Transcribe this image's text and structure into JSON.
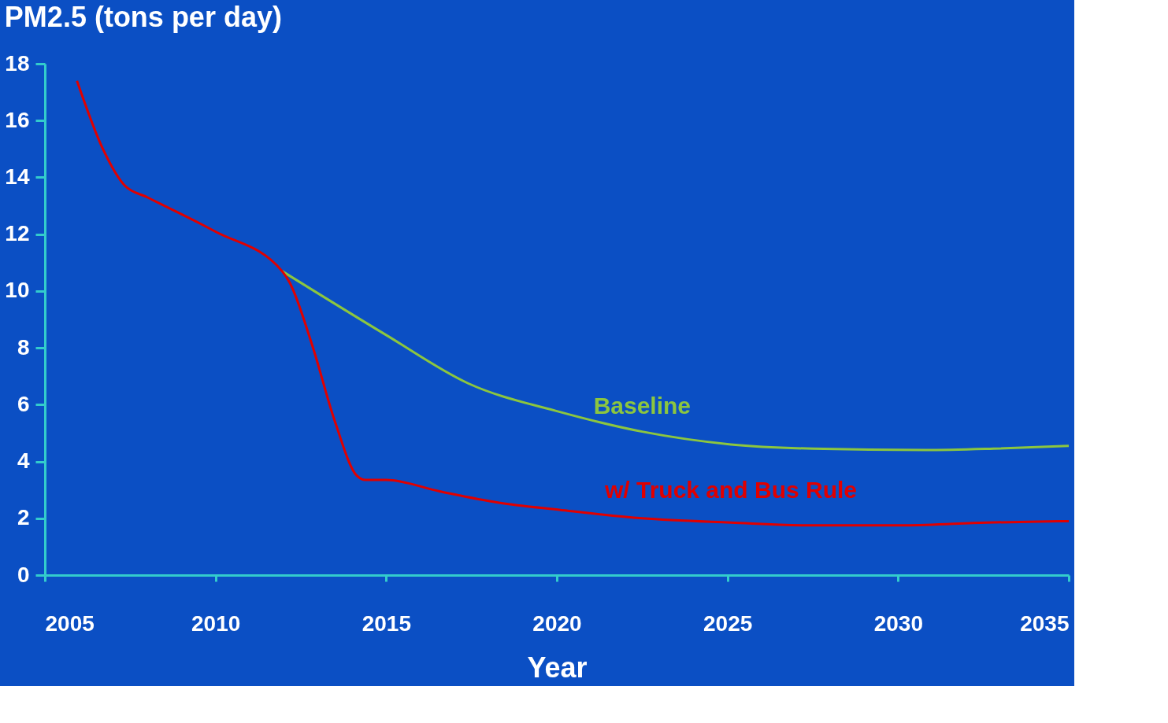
{
  "chart_data": {
    "type": "line",
    "title": "PM2.5 (tons per day)",
    "xlabel": "Year",
    "xlim": [
      2005,
      2035
    ],
    "xticks": [
      2005,
      2010,
      2015,
      2020,
      2025,
      2030,
      2035
    ],
    "ylim": [
      0,
      18
    ],
    "yticks": [
      0,
      2,
      4,
      6,
      8,
      10,
      12,
      14,
      16,
      18
    ],
    "grid": false,
    "marker": "none",
    "line_style": "solid",
    "series": [
      {
        "name": "Baseline",
        "color": "#8cc63f",
        "x": [
          2011.95,
          2015.0,
          2017.4,
          2020.07,
          2022.5,
          2025.1,
          2027.5,
          2030.8,
          2032.8,
          2035.0
        ],
        "values": [
          10.7,
          8.45,
          6.75,
          5.75,
          5.05,
          4.6,
          4.45,
          4.4,
          4.45,
          4.55
        ]
      },
      {
        "name": "w/ Truck and Bus Rule",
        "color": "#e00000",
        "x": [
          2005.94,
          2006.7,
          2007.35,
          2008.0,
          2009.98,
          2011.95,
          2012.17,
          2012.83,
          2013.5,
          2014.14,
          2014.4,
          2015.0,
          2016.56,
          2018.3,
          2020.07,
          2022.5,
          2025.1,
          2027.5,
          2030.2,
          2032.6,
          2035.0
        ],
        "values": [
          17.4,
          15.0,
          13.7,
          13.3,
          12.1,
          10.7,
          10.3,
          8.1,
          5.4,
          3.5,
          3.35,
          3.35,
          2.95,
          2.55,
          2.3,
          2.0,
          1.85,
          1.75,
          1.75,
          1.85,
          1.9
        ]
      }
    ]
  }
}
